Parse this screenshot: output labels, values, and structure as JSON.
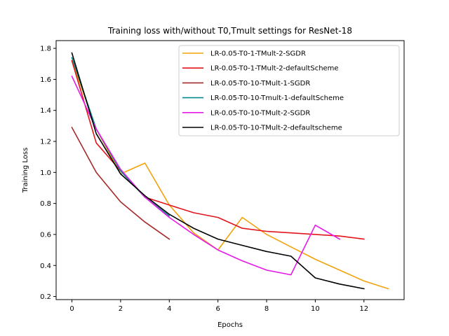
{
  "chart_data": {
    "type": "line",
    "title": "Training loss with/without T0,Tmult settings for ResNet-18",
    "xlabel": "Epochs",
    "ylabel": "Training Loss",
    "xlim": [
      -0.65,
      13.65
    ],
    "ylim": [
      0.18,
      1.85
    ],
    "xticks": [
      0,
      2,
      4,
      6,
      8,
      10,
      12
    ],
    "yticks": [
      0.2,
      0.4,
      0.6,
      0.8,
      1.0,
      1.2,
      1.4,
      1.6,
      1.8
    ],
    "grid": false,
    "legend_position": "top-right",
    "series": [
      {
        "name": "LR-0.05-T0-1-TMult-2-SGDR",
        "color": "#f0a30a",
        "x": [
          0,
          1,
          2,
          3,
          4,
          5,
          6,
          7,
          8,
          9,
          10,
          11,
          12,
          13
        ],
        "y": [
          1.72,
          1.28,
          0.99,
          1.06,
          0.79,
          0.61,
          0.5,
          0.71,
          0.6,
          0.52,
          0.44,
          0.37,
          0.3,
          0.25
        ]
      },
      {
        "name": "LR-0.05-T0-1-TMult-2-defaultScheme",
        "color": "#e4141b",
        "x": [
          0,
          1,
          2,
          3,
          4,
          5,
          6,
          7,
          8,
          9,
          10,
          11,
          12
        ],
        "y": [
          1.72,
          1.19,
          1.01,
          0.84,
          0.79,
          0.74,
          0.71,
          0.64,
          0.62,
          0.61,
          0.6,
          0.59,
          0.57
        ]
      },
      {
        "name": "LR-0.05-T0-10-TMult-1-SGDR",
        "color": "#a52a2a",
        "x": [
          0,
          1,
          2,
          3,
          4
        ],
        "y": [
          1.29,
          1.0,
          0.81,
          0.68,
          0.57
        ]
      },
      {
        "name": "LR-0.05-T0-10-Tmult-1-defaultScheme",
        "color": "#008b8b",
        "x": [
          0,
          1,
          2,
          3,
          4
        ],
        "y": [
          1.74,
          1.28,
          1.01,
          0.84,
          0.72
        ]
      },
      {
        "name": "LR-0.05-T0-10-TMult-2-SGDR",
        "color": "#e719e7",
        "x": [
          0,
          1,
          2,
          3,
          4,
          5,
          6,
          7,
          8,
          9,
          10,
          11
        ],
        "y": [
          1.62,
          1.28,
          1.02,
          0.84,
          0.71,
          0.6,
          0.5,
          0.43,
          0.37,
          0.34,
          0.66,
          0.57
        ]
      },
      {
        "name": "LR-0.05-T0-10-TMult-2-defaultscheme",
        "color": "#000000",
        "x": [
          0,
          1,
          2,
          3,
          4,
          5,
          6,
          7,
          8,
          9,
          10,
          11,
          12
        ],
        "y": [
          1.77,
          1.25,
          0.99,
          0.85,
          0.73,
          0.64,
          0.57,
          0.53,
          0.49,
          0.46,
          0.32,
          0.28,
          0.25
        ]
      }
    ]
  }
}
